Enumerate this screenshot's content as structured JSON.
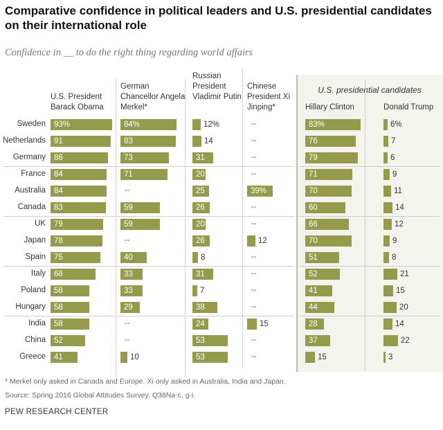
{
  "chart_data": {
    "type": "bar",
    "title": "Comparative confidence in political leaders and U.S. presidential candidates on their international role",
    "subtitle": "Confidence in __ to do the right thing regarding world affairs",
    "group_label": "U.S. presidential candidates",
    "categories": [
      "Sweden",
      "Netherlands",
      "Germany",
      "France",
      "Australia",
      "Canada",
      "UK",
      "Japan",
      "Spain",
      "Italy",
      "Poland",
      "Hungary",
      "India",
      "China",
      "Greece"
    ],
    "series": [
      {
        "name": "U.S. President Barack Obama",
        "values": [
          93,
          91,
          86,
          84,
          84,
          83,
          79,
          78,
          75,
          68,
          58,
          58,
          58,
          52,
          41
        ]
      },
      {
        "name": "German Chancellor Angela Merkel*",
        "values": [
          84,
          83,
          73,
          71,
          null,
          59,
          59,
          null,
          40,
          33,
          33,
          29,
          null,
          null,
          10
        ]
      },
      {
        "name": "Russian President Vladimir Putin",
        "values": [
          12,
          14,
          31,
          20,
          25,
          26,
          20,
          26,
          8,
          31,
          7,
          38,
          24,
          53,
          53
        ]
      },
      {
        "name": "Chinese President Xi Jinping*",
        "values": [
          null,
          null,
          null,
          null,
          39,
          null,
          null,
          12,
          null,
          null,
          null,
          null,
          15,
          null,
          null
        ]
      },
      {
        "name": "Hillary Clinton",
        "values": [
          83,
          76,
          79,
          71,
          70,
          60,
          66,
          70,
          51,
          52,
          41,
          44,
          28,
          37,
          15
        ]
      },
      {
        "name": "Donald Trump",
        "values": [
          6,
          7,
          6,
          9,
          11,
          14,
          12,
          9,
          8,
          21,
          15,
          20,
          14,
          22,
          3
        ]
      }
    ],
    "missing_label": "--",
    "unit": "%",
    "ylim": [
      0,
      100
    ],
    "bar_color": "#959b4a"
  },
  "notes": {
    "footnote": "* Merkel only asked in Canada and Europe. Xi only asked in Australia, India and Japan.",
    "source": "Source: Spring 2016 Global Attitudes Survey. Q38Na-c, g-i.",
    "brand": "PEW RESEARCH CENTER"
  }
}
